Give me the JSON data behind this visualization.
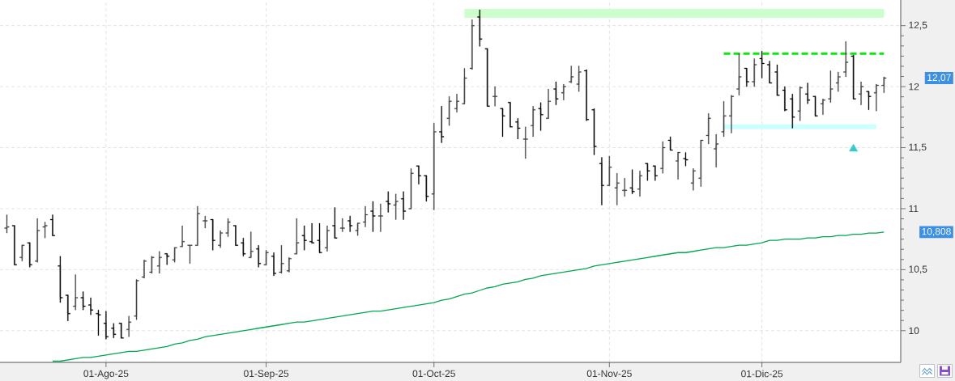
{
  "chart_data": {
    "type": "candlestick",
    "categories": [
      null,
      null,
      null,
      null,
      null,
      null,
      null,
      null,
      null,
      null,
      null,
      null,
      null,
      "01-Ago-25",
      null,
      null,
      null,
      null,
      null,
      null,
      null,
      null,
      null,
      null,
      null,
      null,
      null,
      null,
      null,
      null,
      null,
      null,
      null,
      null,
      "01-Sep-25",
      null,
      null,
      null,
      null,
      null,
      null,
      null,
      null,
      null,
      null,
      null,
      null,
      null,
      null,
      null,
      null,
      null,
      null,
      null,
      null,
      null,
      "01-Oct-25",
      null,
      null,
      null,
      null,
      null,
      null,
      null,
      null,
      null,
      null,
      null,
      null,
      null,
      null,
      null,
      null,
      null,
      null,
      null,
      null,
      null,
      null,
      "01-Nov-25",
      null,
      null,
      null,
      null,
      null,
      null,
      null,
      null,
      null,
      null,
      null,
      null,
      null,
      null,
      null,
      null,
      null,
      null,
      null,
      "01-Dic-25",
      null,
      null,
      null,
      null,
      null,
      null,
      null,
      null,
      null,
      null,
      null,
      null,
      null,
      null,
      null,
      null
    ],
    "ohlc": [
      [
        10.84,
        10.95,
        10.8,
        10.85
      ],
      [
        10.86,
        10.86,
        10.54,
        10.54
      ],
      [
        10.6,
        10.7,
        10.57,
        10.7
      ],
      [
        10.72,
        10.72,
        10.52,
        10.54
      ],
      [
        10.57,
        10.92,
        10.56,
        10.82
      ],
      [
        10.85,
        10.89,
        10.76,
        10.86
      ],
      [
        10.91,
        10.95,
        10.78,
        10.78
      ],
      [
        10.53,
        10.61,
        10.23,
        10.27
      ],
      [
        10.29,
        10.29,
        10.08,
        10.14
      ],
      [
        10.2,
        10.46,
        10.17,
        10.27
      ],
      [
        10.27,
        10.32,
        10.17,
        10.2
      ],
      [
        10.21,
        10.27,
        10.13,
        10.17
      ],
      [
        10.14,
        10.17,
        9.96,
        10.13
      ],
      [
        10.06,
        10.16,
        9.93,
        9.95
      ],
      [
        10.02,
        10.06,
        9.94,
        9.97
      ],
      [
        10.06,
        10.06,
        9.94,
        9.94
      ],
      [
        10.01,
        10.12,
        9.95,
        10.07
      ],
      [
        10.12,
        10.42,
        10.09,
        10.41
      ],
      [
        10.44,
        10.58,
        10.43,
        10.57
      ],
      [
        10.48,
        10.61,
        10.47,
        10.6
      ],
      [
        10.53,
        10.65,
        10.47,
        10.6
      ],
      [
        10.63,
        10.63,
        10.54,
        10.61
      ],
      [
        10.58,
        10.68,
        10.56,
        10.68
      ],
      [
        10.69,
        10.86,
        10.69,
        10.73
      ],
      [
        10.7,
        10.7,
        10.55,
        10.7
      ],
      [
        10.7,
        11.02,
        10.7,
        10.96
      ],
      [
        10.9,
        10.94,
        10.84,
        10.9
      ],
      [
        10.91,
        10.91,
        10.66,
        10.74
      ],
      [
        10.7,
        10.82,
        10.68,
        10.8
      ],
      [
        10.8,
        10.92,
        10.77,
        10.89
      ],
      [
        10.86,
        10.86,
        10.7,
        10.7
      ],
      [
        10.72,
        10.76,
        10.61,
        10.63
      ],
      [
        10.6,
        10.81,
        10.6,
        10.65
      ],
      [
        10.67,
        10.7,
        10.52,
        10.55
      ],
      [
        10.54,
        10.66,
        10.54,
        10.64
      ],
      [
        10.61,
        10.64,
        10.45,
        10.47
      ],
      [
        10.48,
        10.7,
        10.47,
        10.55
      ],
      [
        10.49,
        10.6,
        10.48,
        10.59
      ],
      [
        10.63,
        10.92,
        10.63,
        10.72
      ],
      [
        10.78,
        10.86,
        10.66,
        10.74
      ],
      [
        10.73,
        10.88,
        10.72,
        10.72
      ],
      [
        10.74,
        10.88,
        10.64,
        10.64
      ],
      [
        10.68,
        10.86,
        10.65,
        10.82
      ],
      [
        10.86,
        11.01,
        10.76,
        10.76
      ],
      [
        10.84,
        10.92,
        10.81,
        10.84
      ],
      [
        10.9,
        10.94,
        10.81,
        10.86
      ],
      [
        10.82,
        10.88,
        10.78,
        10.88
      ],
      [
        10.89,
        11.02,
        10.85,
        10.95
      ],
      [
        10.98,
        11.06,
        10.81,
        10.94
      ],
      [
        10.94,
        11.04,
        10.81,
        10.94
      ],
      [
        11.06,
        11.14,
        10.97,
        11.04
      ],
      [
        11.03,
        11.12,
        10.91,
        11.06
      ],
      [
        11.08,
        11.14,
        10.91,
        10.98
      ],
      [
        11.0,
        11.33,
        11.0,
        11.29
      ],
      [
        11.35,
        11.35,
        11.2,
        11.27
      ],
      [
        11.27,
        11.27,
        11.06,
        11.1
      ],
      [
        11.12,
        11.7,
        10.99,
        11.63
      ],
      [
        11.63,
        11.84,
        11.54,
        11.59
      ],
      [
        11.74,
        11.92,
        11.68,
        11.88
      ],
      [
        11.82,
        11.94,
        11.79,
        11.88
      ],
      [
        11.86,
        12.15,
        11.86,
        12.07
      ],
      [
        12.15,
        12.55,
        12.14,
        12.5
      ],
      [
        12.57,
        12.63,
        12.33,
        12.39
      ],
      [
        12.31,
        12.31,
        11.84,
        11.84
      ],
      [
        11.92,
        12.0,
        11.84,
        11.92
      ],
      [
        11.82,
        11.82,
        11.59,
        11.76
      ],
      [
        11.87,
        11.87,
        11.67,
        11.67
      ],
      [
        11.71,
        11.74,
        11.57,
        11.66
      ],
      [
        11.57,
        11.67,
        11.41,
        11.57
      ],
      [
        11.68,
        11.84,
        11.59,
        11.81
      ],
      [
        11.82,
        11.87,
        11.64,
        11.77
      ],
      [
        11.74,
        11.98,
        11.74,
        11.88
      ],
      [
        11.98,
        12.04,
        11.85,
        11.9
      ],
      [
        11.95,
        12.02,
        11.89,
        12.0
      ],
      [
        12.04,
        12.17,
        12.03,
        12.08
      ],
      [
        12.02,
        12.17,
        11.96,
        12.12
      ],
      [
        12.13,
        12.14,
        11.72,
        11.73
      ],
      [
        11.81,
        11.82,
        11.44,
        11.51
      ],
      [
        11.37,
        11.42,
        11.03,
        11.19
      ],
      [
        11.19,
        11.43,
        11.19,
        11.34
      ],
      [
        11.17,
        11.29,
        11.03,
        11.21
      ],
      [
        11.15,
        11.25,
        11.1,
        11.15
      ],
      [
        11.17,
        11.32,
        11.12,
        11.14
      ],
      [
        11.16,
        11.31,
        11.1,
        11.27
      ],
      [
        11.37,
        11.37,
        11.23,
        11.31
      ],
      [
        11.35,
        11.35,
        11.23,
        11.27
      ],
      [
        11.33,
        11.55,
        11.29,
        11.5
      ],
      [
        11.56,
        11.59,
        11.48,
        11.48
      ],
      [
        11.39,
        11.46,
        11.24,
        11.46
      ],
      [
        11.41,
        11.46,
        11.35,
        11.4
      ],
      [
        11.21,
        11.33,
        11.15,
        11.31
      ],
      [
        11.25,
        11.56,
        11.18,
        11.56
      ],
      [
        11.6,
        11.78,
        11.53,
        11.74
      ],
      [
        11.49,
        11.61,
        11.34,
        11.53
      ],
      [
        11.63,
        11.88,
        11.59,
        11.76
      ],
      [
        11.76,
        11.93,
        11.62,
        11.92
      ],
      [
        11.98,
        12.27,
        11.93,
        12.08
      ],
      [
        12.15,
        12.15,
        12.0,
        12.04
      ],
      [
        12.04,
        12.23,
        12.0,
        12.18
      ],
      [
        12.23,
        12.29,
        12.07,
        12.19
      ],
      [
        12.18,
        12.21,
        12.03,
        12.03
      ],
      [
        12.12,
        12.18,
        11.93,
        11.93
      ],
      [
        11.97,
        12.0,
        11.8,
        11.81
      ],
      [
        11.9,
        11.94,
        11.66,
        11.75
      ],
      [
        11.8,
        12.0,
        11.72,
        11.99
      ],
      [
        11.94,
        12.03,
        11.86,
        11.89
      ],
      [
        11.92,
        11.92,
        11.76,
        11.76
      ],
      [
        11.86,
        11.9,
        11.77,
        11.89
      ],
      [
        11.9,
        12.13,
        11.87,
        11.98
      ],
      [
        12.03,
        12.12,
        11.96,
        12.08
      ],
      [
        12.12,
        12.37,
        12.08,
        12.2
      ],
      [
        12.25,
        12.26,
        11.9,
        11.9
      ],
      [
        11.94,
        12.04,
        11.85,
        12.0
      ],
      [
        11.96,
        11.96,
        11.81,
        11.92
      ],
      [
        11.95,
        12.02,
        11.8,
        12.01
      ],
      [
        12.01,
        12.08,
        11.95,
        12.07
      ]
    ],
    "colors": [
      "#404040",
      "#000000",
      "#404040",
      "#000000",
      "#404040",
      "#404040",
      "#000000",
      "#000000",
      "#000000",
      "#404040",
      "#000000",
      "#000000",
      "#000000",
      "#000000",
      "#000000",
      "#000000",
      "#404040",
      "#404040",
      "#404040",
      "#404040",
      "#404040",
      "#000000",
      "#404040",
      "#404040",
      "#404040",
      "#404040",
      "#404040",
      "#000000",
      "#404040",
      "#404040",
      "#000000",
      "#000000",
      "#404040",
      "#000000",
      "#404040",
      "#000000",
      "#404040",
      "#404040",
      "#404040",
      "#000000",
      "#000000",
      "#000000",
      "#404040",
      "#000000",
      "#404040",
      "#000000",
      "#404040",
      "#404040",
      "#000000",
      "#404040",
      "#000000",
      "#404040",
      "#000000",
      "#404040",
      "#000000",
      "#000000",
      "#404040",
      "#000000",
      "#404040",
      "#404040",
      "#404040",
      "#404040",
      "#000000",
      "#000000",
      "#404040",
      "#000000",
      "#000000",
      "#000000",
      "#404040",
      "#404040",
      "#000000",
      "#404040",
      "#000000",
      "#404040",
      "#404040",
      "#404040",
      "#000000",
      "#000000",
      "#000000",
      "#404040",
      "#404040",
      "#404040",
      "#000000",
      "#404040",
      "#000000",
      "#000000",
      "#404040",
      "#000000",
      "#404040",
      "#000000",
      "#404040",
      "#404040",
      "#404040",
      "#404040",
      "#404040",
      "#404040",
      "#404040",
      "#000000",
      "#404040",
      "#000000",
      "#000000",
      "#000000",
      "#000000",
      "#000000",
      "#404040",
      "#000000",
      "#000000",
      "#404040",
      "#404040",
      "#404040",
      "#404040",
      "#000000",
      "#404040",
      "#000000",
      "#404040",
      "#404040"
    ],
    "series": [
      {
        "type": "line",
        "color": "#00a84f",
        "values": [
          null,
          null,
          null,
          null,
          null,
          null,
          9.75,
          9.75,
          9.76,
          9.77,
          9.78,
          9.78,
          9.79,
          9.8,
          9.81,
          9.82,
          9.83,
          9.83,
          9.84,
          9.85,
          9.86,
          9.87,
          9.89,
          9.9,
          9.92,
          9.93,
          9.95,
          9.96,
          9.97,
          9.98,
          9.99,
          10.0,
          10.01,
          10.02,
          10.03,
          10.04,
          10.05,
          10.06,
          10.07,
          10.07,
          10.08,
          10.09,
          10.1,
          10.11,
          10.12,
          10.13,
          10.14,
          10.15,
          10.16,
          10.16,
          10.17,
          10.18,
          10.19,
          10.2,
          10.21,
          10.22,
          10.23,
          10.25,
          10.26,
          10.28,
          10.3,
          10.31,
          10.33,
          10.35,
          10.36,
          10.38,
          10.39,
          10.4,
          10.42,
          10.43,
          10.45,
          10.46,
          10.47,
          10.48,
          10.49,
          10.5,
          10.51,
          10.53,
          10.54,
          10.55,
          10.56,
          10.57,
          10.58,
          10.59,
          10.6,
          10.61,
          10.62,
          10.63,
          10.64,
          10.64,
          10.65,
          10.66,
          10.67,
          10.68,
          10.68,
          10.69,
          10.7,
          10.7,
          10.71,
          10.72,
          10.74,
          10.74,
          10.75,
          10.75,
          10.75,
          10.76,
          10.76,
          10.77,
          10.77,
          10.78,
          10.78,
          10.79,
          10.79,
          10.8,
          10.8,
          10.808
        ]
      },
      {
        "type": "line",
        "color": "#ccffcc",
        "values": [
          null,
          null,
          null,
          null,
          null,
          null,
          null,
          null,
          null,
          null,
          null,
          null,
          null,
          null,
          null,
          null,
          null,
          null,
          null,
          null,
          null,
          null,
          null,
          null,
          null,
          null,
          null,
          null,
          null,
          null,
          null,
          null,
          null,
          null,
          null,
          null,
          null,
          null,
          null,
          null,
          null,
          null,
          null,
          null,
          null,
          null,
          null,
          null,
          null,
          null,
          null,
          null,
          null,
          null,
          null,
          null,
          null,
          null,
          null,
          null,
          12.6,
          12.6,
          12.6,
          12.6,
          12.6,
          12.6,
          12.6,
          12.6,
          12.6,
          12.6,
          12.6,
          12.6,
          12.6,
          12.6,
          12.6,
          12.6,
          12.6,
          12.6,
          12.6,
          12.6,
          12.6,
          12.6,
          12.6,
          12.6,
          12.6,
          12.6,
          12.6,
          12.6,
          12.6,
          12.6,
          12.6,
          12.6,
          12.6,
          12.6,
          12.6,
          12.6,
          12.6,
          12.6,
          12.6,
          12.6,
          12.6,
          12.6,
          12.6,
          12.6,
          12.6,
          12.6,
          12.6,
          12.6,
          12.6,
          12.6,
          12.6,
          12.6,
          12.6,
          12.6,
          12.6,
          12.6
        ]
      },
      {
        "type": "line",
        "color": "#00ee00",
        "line_style": "dashed",
        "values": [
          null,
          null,
          null,
          null,
          null,
          null,
          null,
          null,
          null,
          null,
          null,
          null,
          null,
          null,
          null,
          null,
          null,
          null,
          null,
          null,
          null,
          null,
          null,
          null,
          null,
          null,
          null,
          null,
          null,
          null,
          null,
          null,
          null,
          null,
          null,
          null,
          null,
          null,
          null,
          null,
          null,
          null,
          null,
          null,
          null,
          null,
          null,
          null,
          null,
          null,
          null,
          null,
          null,
          null,
          null,
          null,
          null,
          null,
          null,
          null,
          null,
          null,
          null,
          null,
          null,
          null,
          null,
          null,
          null,
          null,
          null,
          null,
          null,
          null,
          null,
          null,
          null,
          null,
          null,
          null,
          null,
          null,
          null,
          null,
          null,
          null,
          null,
          null,
          null,
          null,
          null,
          null,
          null,
          null,
          12.27,
          12.27,
          12.27,
          12.27,
          12.27,
          12.27,
          12.27,
          12.27,
          12.27,
          12.27,
          12.27,
          12.27,
          12.27,
          12.27,
          12.27,
          12.27,
          12.27,
          12.27,
          12.27,
          12.27,
          12.27,
          12.27
        ]
      },
      {
        "type": "line",
        "color": "#ccffff",
        "values": [
          null,
          null,
          null,
          null,
          null,
          null,
          null,
          null,
          null,
          null,
          null,
          null,
          null,
          null,
          null,
          null,
          null,
          null,
          null,
          null,
          null,
          null,
          null,
          null,
          null,
          null,
          null,
          null,
          null,
          null,
          null,
          null,
          null,
          null,
          null,
          null,
          null,
          null,
          null,
          null,
          null,
          null,
          null,
          null,
          null,
          null,
          null,
          null,
          null,
          null,
          null,
          null,
          null,
          null,
          null,
          null,
          null,
          null,
          null,
          null,
          null,
          null,
          null,
          null,
          null,
          null,
          null,
          null,
          null,
          null,
          null,
          null,
          null,
          null,
          null,
          null,
          null,
          null,
          null,
          null,
          null,
          null,
          null,
          null,
          null,
          null,
          null,
          null,
          null,
          null,
          null,
          null,
          null,
          null,
          11.67,
          11.67,
          11.67,
          11.67,
          11.67,
          11.67,
          11.67,
          11.67,
          11.67,
          11.67,
          11.67,
          11.67,
          11.67,
          11.67,
          11.67,
          11.67,
          11.67,
          11.67,
          11.67,
          11.67,
          11.67,
          null
        ]
      },
      {
        "type": "scatter",
        "color": "#33cccc",
        "marker": "triangle",
        "values": [
          null,
          null,
          null,
          null,
          null,
          null,
          null,
          null,
          null,
          null,
          null,
          null,
          null,
          null,
          null,
          null,
          null,
          null,
          null,
          null,
          null,
          null,
          null,
          null,
          null,
          null,
          null,
          null,
          null,
          null,
          null,
          null,
          null,
          null,
          null,
          null,
          null,
          null,
          null,
          null,
          null,
          null,
          null,
          null,
          null,
          null,
          null,
          null,
          null,
          null,
          null,
          null,
          null,
          null,
          null,
          null,
          null,
          null,
          null,
          null,
          null,
          null,
          null,
          null,
          null,
          null,
          null,
          null,
          null,
          null,
          null,
          null,
          null,
          null,
          null,
          null,
          null,
          null,
          null,
          null,
          null,
          null,
          null,
          null,
          null,
          null,
          null,
          null,
          null,
          null,
          null,
          null,
          null,
          null,
          null,
          null,
          null,
          null,
          null,
          null,
          null,
          null,
          null,
          null,
          null,
          null,
          null,
          null,
          null,
          null,
          null,
          11.49,
          null,
          null,
          null,
          null
        ]
      }
    ],
    "ylim": [
      9.74,
      12.71
    ],
    "yticks": [
      10,
      {
        "value": 10.5,
        "label": "10,5"
      },
      11,
      {
        "value": 11.5,
        "label": "11,5"
      },
      12,
      {
        "value": 12.5,
        "label": "12,5"
      }
    ],
    "grid": true,
    "annotations": [
      "12,07",
      "10,808"
    ]
  }
}
